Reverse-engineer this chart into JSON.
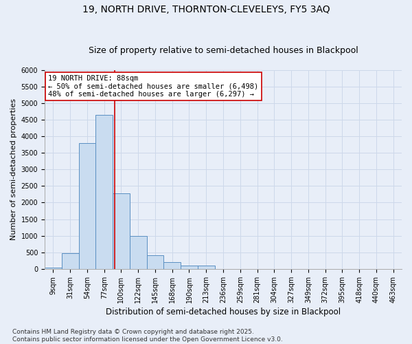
{
  "title1": "19, NORTH DRIVE, THORNTON-CLEVELEYS, FY5 3AQ",
  "title2": "Size of property relative to semi-detached houses in Blackpool",
  "xlabel": "Distribution of semi-detached houses by size in Blackpool",
  "ylabel": "Number of semi-detached properties",
  "bar_labels": [
    "9sqm",
    "31sqm",
    "54sqm",
    "77sqm",
    "100sqm",
    "122sqm",
    "145sqm",
    "168sqm",
    "190sqm",
    "213sqm",
    "236sqm",
    "259sqm",
    "281sqm",
    "304sqm",
    "327sqm",
    "349sqm",
    "372sqm",
    "395sqm",
    "418sqm",
    "440sqm",
    "463sqm"
  ],
  "bar_values": [
    50,
    470,
    3800,
    4650,
    2280,
    1000,
    420,
    200,
    110,
    100,
    0,
    0,
    0,
    0,
    0,
    0,
    0,
    0,
    0,
    0,
    0
  ],
  "bar_color": "#c9dcf0",
  "bar_edge_color": "#5a8fc2",
  "grid_color": "#cdd8ea",
  "background_color": "#e8eef8",
  "annotation_line1": "19 NORTH DRIVE: 88sqm",
  "annotation_line2": "← 50% of semi-detached houses are smaller (6,498)",
  "annotation_line3": "48% of semi-detached houses are larger (6,297) →",
  "vline_x": 3.62,
  "vline_color": "#cc0000",
  "annotation_box_color": "#ffffff",
  "annotation_box_edge": "#cc0000",
  "ylim": [
    0,
    6000
  ],
  "yticks": [
    0,
    500,
    1000,
    1500,
    2000,
    2500,
    3000,
    3500,
    4000,
    4500,
    5000,
    5500,
    6000
  ],
  "footnote": "Contains HM Land Registry data © Crown copyright and database right 2025.\nContains public sector information licensed under the Open Government Licence v3.0.",
  "title1_fontsize": 10,
  "title2_fontsize": 9,
  "annot_fontsize": 7.5,
  "tick_fontsize": 7,
  "ylabel_fontsize": 8,
  "xlabel_fontsize": 8.5,
  "footnote_fontsize": 6.5
}
